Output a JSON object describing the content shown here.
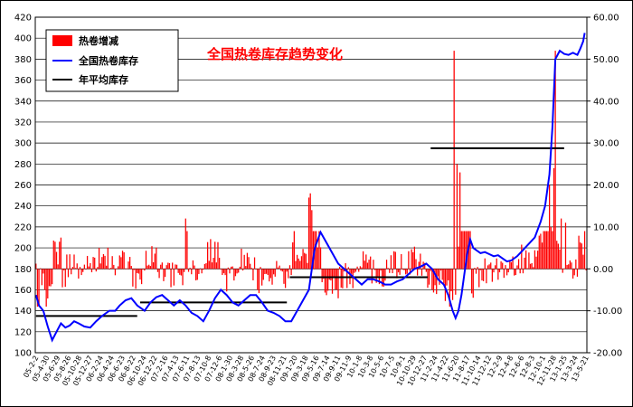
{
  "chart_data": {
    "type": "bar+line",
    "title": "全国热卷库存趋势变化",
    "legend": [
      "热卷增减",
      "全国热卷库存",
      "年平均库存"
    ],
    "legend_position": "top-left",
    "grid": {
      "horizontal": true,
      "vertical": false
    },
    "colors": {
      "bars": "#ff0000",
      "inventory_line": "#0000ff",
      "annual_avg": "#000000"
    },
    "left_axis": {
      "min": 100,
      "max": 420,
      "step": 20,
      "ticks": [
        "100",
        "120",
        "140",
        "160",
        "180",
        "200",
        "220",
        "240",
        "260",
        "280",
        "300",
        "320",
        "340",
        "360",
        "380",
        "400",
        "420"
      ]
    },
    "right_axis": {
      "min": -20,
      "max": 60,
      "step": 10,
      "ticks": [
        "-20.00",
        "-10.00",
        "0.00",
        "10.00",
        "20.00",
        "30.00",
        "40.00",
        "50.00",
        "60.00"
      ]
    },
    "x_tick_labels": [
      "05-2-2",
      "05-4-30",
      "05-6-29",
      "05-8-26",
      "05-10-28",
      "05-12-27",
      "06-2-24",
      "06-4-24",
      "06-6-23",
      "06-8-22",
      "06-10-24",
      "06-12-22",
      "07-2-16",
      "07-4-13",
      "07-6-11",
      "07-8-13",
      "07-10-8",
      "07-12-6",
      "08-1-30",
      "08-3-28",
      "08-5-26",
      "08-7-24",
      "08-9-23",
      "08-11-21",
      "09-1-20",
      "09-3-18",
      "09-5-16",
      "09-7-14",
      "09-9-11",
      "09-11-9",
      "10-1-8",
      "10-3-8",
      "10-5-6",
      "10-7-5",
      "10-9-1",
      "10-10-29",
      "10-12-27",
      "11-2-24",
      "11-4-22",
      "11-6-20",
      "11-8-17",
      "11-10-14",
      "11-12-12",
      "12-2-9",
      "12-4-8",
      "12-6-6",
      "12-8-3",
      "12-10-1",
      "12-11-28",
      "13-1-25",
      "13-3-24",
      "13-5-21"
    ],
    "inventory_series": {
      "name": "全国热卷库存",
      "points": [
        [
          0,
          155
        ],
        [
          2,
          145
        ],
        [
          5,
          140
        ],
        [
          8,
          125
        ],
        [
          11,
          112
        ],
        [
          14,
          120
        ],
        [
          17,
          128
        ],
        [
          20,
          124
        ],
        [
          23,
          126
        ],
        [
          26,
          130
        ],
        [
          29,
          128
        ],
        [
          33,
          125
        ],
        [
          37,
          124
        ],
        [
          41,
          130
        ],
        [
          45,
          135
        ],
        [
          50,
          140
        ],
        [
          54,
          140
        ],
        [
          57,
          145
        ],
        [
          61,
          150
        ],
        [
          65,
          152
        ],
        [
          69,
          145
        ],
        [
          74,
          140
        ],
        [
          78,
          148
        ],
        [
          82,
          153
        ],
        [
          86,
          155
        ],
        [
          90,
          150
        ],
        [
          94,
          145
        ],
        [
          98,
          150
        ],
        [
          102,
          145
        ],
        [
          106,
          138
        ],
        [
          110,
          135
        ],
        [
          114,
          130
        ],
        [
          118,
          140
        ],
        [
          122,
          152
        ],
        [
          126,
          160
        ],
        [
          130,
          155
        ],
        [
          134,
          148
        ],
        [
          138,
          145
        ],
        [
          142,
          150
        ],
        [
          146,
          155
        ],
        [
          150,
          155
        ],
        [
          154,
          148
        ],
        [
          158,
          140
        ],
        [
          162,
          138
        ],
        [
          166,
          135
        ],
        [
          170,
          130
        ],
        [
          174,
          130
        ],
        [
          178,
          140
        ],
        [
          182,
          150
        ],
        [
          186,
          160
        ],
        [
          190,
          200
        ],
        [
          194,
          215
        ],
        [
          198,
          205
        ],
        [
          202,
          195
        ],
        [
          206,
          185
        ],
        [
          210,
          180
        ],
        [
          214,
          175
        ],
        [
          218,
          170
        ],
        [
          222,
          165
        ],
        [
          226,
          170
        ],
        [
          230,
          170
        ],
        [
          234,
          168
        ],
        [
          238,
          165
        ],
        [
          242,
          165
        ],
        [
          246,
          168
        ],
        [
          250,
          170
        ],
        [
          254,
          175
        ],
        [
          258,
          180
        ],
        [
          262,
          182
        ],
        [
          266,
          185
        ],
        [
          270,
          180
        ],
        [
          274,
          170
        ],
        [
          278,
          165
        ],
        [
          281,
          155
        ],
        [
          284,
          140
        ],
        [
          286,
          133
        ],
        [
          288,
          140
        ],
        [
          290,
          155
        ],
        [
          292,
          175
        ],
        [
          294,
          195
        ],
        [
          296,
          208
        ],
        [
          298,
          200
        ],
        [
          300,
          198
        ],
        [
          303,
          195
        ],
        [
          306,
          196
        ],
        [
          309,
          194
        ],
        [
          312,
          192
        ],
        [
          315,
          193
        ],
        [
          318,
          190
        ],
        [
          321,
          187
        ],
        [
          324,
          188
        ],
        [
          328,
          192
        ],
        [
          332,
          198
        ],
        [
          336,
          204
        ],
        [
          340,
          210
        ],
        [
          344,
          225
        ],
        [
          347,
          240
        ],
        [
          350,
          270
        ],
        [
          352,
          315
        ],
        [
          354,
          380
        ],
        [
          357,
          388
        ],
        [
          360,
          385
        ],
        [
          363,
          384
        ],
        [
          366,
          386
        ],
        [
          369,
          384
        ],
        [
          371,
          390
        ],
        [
          373,
          397
        ],
        [
          374,
          405
        ]
      ]
    },
    "annual_averages": [
      {
        "from": 0,
        "to": 69,
        "value": 135
      },
      {
        "from": 71,
        "to": 171,
        "value": 148
      },
      {
        "from": 173,
        "to": 267,
        "value": 172
      },
      {
        "from": 269,
        "to": 360,
        "value": 295
      }
    ],
    "change_bars": {
      "name": "热卷增减",
      "spikes": [
        [
          102,
          12
        ],
        [
          103,
          9
        ],
        [
          176,
          9
        ],
        [
          186,
          17
        ],
        [
          187,
          18
        ],
        [
          188,
          14
        ],
        [
          285,
          52
        ],
        [
          287,
          25
        ],
        [
          289,
          23
        ],
        [
          350,
          20
        ],
        [
          351,
          10
        ],
        [
          353,
          24
        ],
        [
          354,
          52
        ],
        [
          358,
          12
        ],
        [
          361,
          11
        ]
      ]
    }
  }
}
